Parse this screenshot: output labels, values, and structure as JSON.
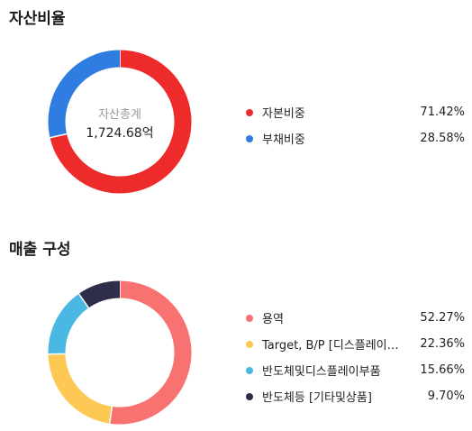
{
  "chart_data": [
    {
      "type": "pie",
      "title": "자산비율",
      "center_caption": "자산총계",
      "center_value": "1,724.68억",
      "categories": [
        "자본비중",
        "부채비중"
      ],
      "values": [
        71.42,
        28.58
      ],
      "value_labels": [
        "71.42%",
        "28.58%"
      ],
      "colors": [
        "#ee2b2b",
        "#2f7de1"
      ],
      "legend_position": "right"
    },
    {
      "type": "pie",
      "title": "매출 구성",
      "categories": [
        "용역",
        "Target, B/P [디스플레이…",
        "반도체및디스플레이부품",
        "반도체등 [기타및상품]"
      ],
      "values": [
        52.27,
        22.36,
        15.66,
        9.7
      ],
      "value_labels": [
        "52.27%",
        "22.36%",
        "15.66%",
        "9.70%"
      ],
      "colors": [
        "#f87272",
        "#fdc853",
        "#49b8e2",
        "#2e2e4a"
      ],
      "legend_position": "right"
    }
  ]
}
